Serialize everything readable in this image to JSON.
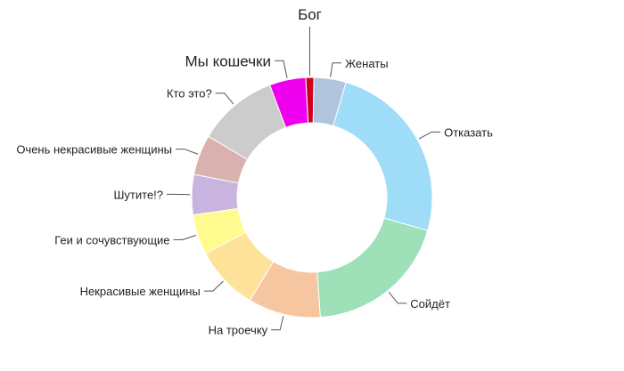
{
  "chart_data": {
    "type": "pie",
    "donut": true,
    "start_angle_deg": -3,
    "slices": [
      {
        "label": "Бог",
        "value": 1.0,
        "color": "#d0021b",
        "emphasis": true
      },
      {
        "label": "Женаты",
        "value": 4.0,
        "color": "#b0c4de"
      },
      {
        "label": "Отказать",
        "value": 23.0,
        "color": "#9edcf7"
      },
      {
        "label": "Сойдёт",
        "value": 18.0,
        "color": "#9ee0b8"
      },
      {
        "label": "На троечку",
        "value": 9.0,
        "color": "#f5c6a0"
      },
      {
        "label": "Некрасивые женщины",
        "value": 8.0,
        "color": "#ffe29a"
      },
      {
        "label": "Геи и сочувствующие",
        "value": 5.0,
        "color": "#fffb8f"
      },
      {
        "label": "Шутите!?",
        "value": 5.0,
        "color": "#c9b3df"
      },
      {
        "label": "Очень некрасивые женщины",
        "value": 5.0,
        "color": "#d9b1ae"
      },
      {
        "label": "Кто это?",
        "value": 10.0,
        "color": "#cccccc"
      },
      {
        "label": "Мы кошечки",
        "value": 4.5,
        "color": "#ee00ee",
        "emphasis": true
      }
    ]
  }
}
